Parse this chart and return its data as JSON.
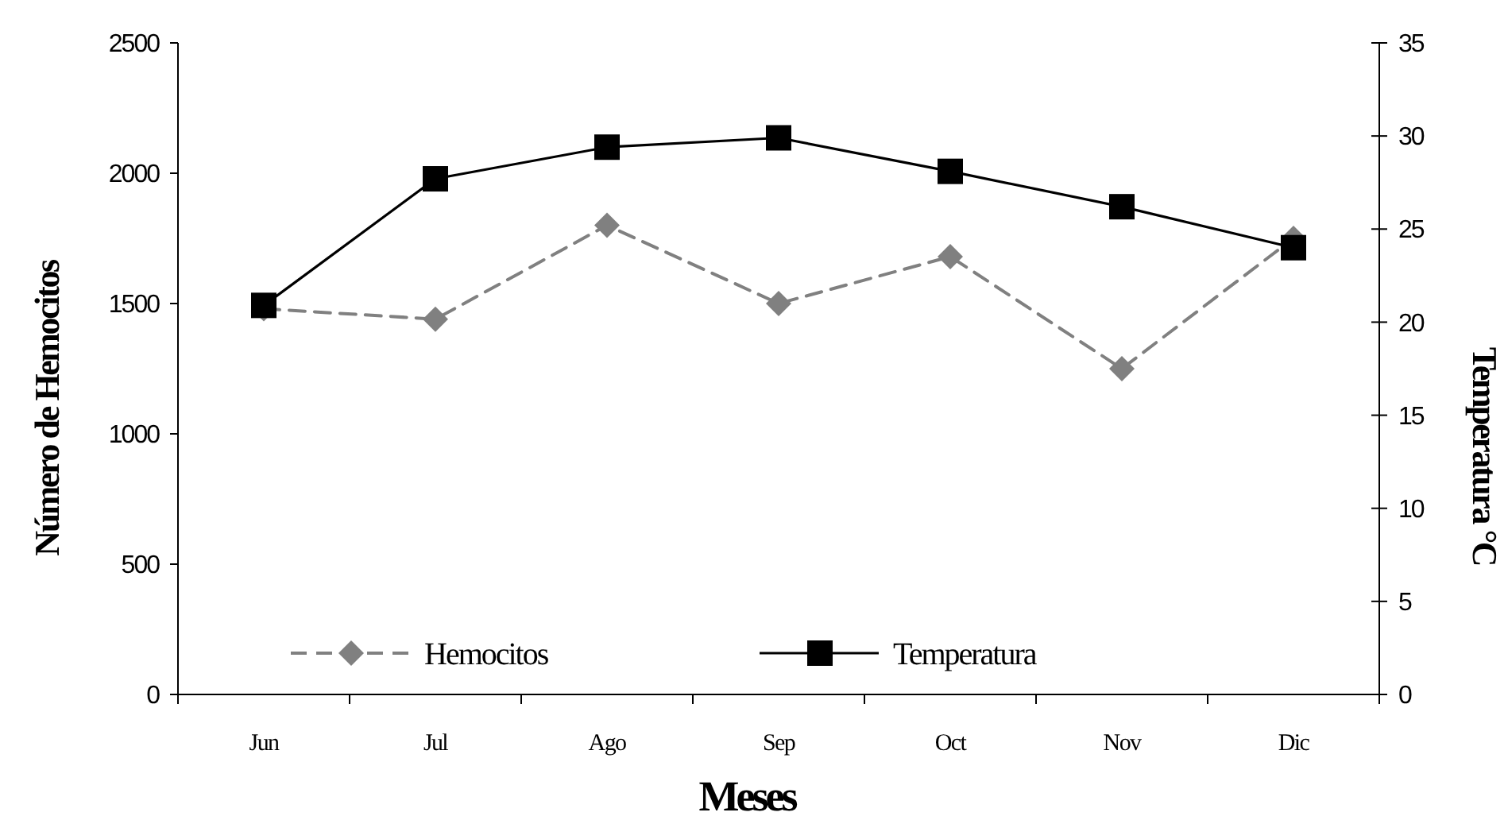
{
  "chart_data": {
    "type": "line",
    "xlabel": "Meses",
    "ylabel": "Número de Hemocitos",
    "y2label": "Temperatura °C",
    "categories": [
      "Jun",
      "Jul",
      "Ago",
      "Sep",
      "Oct",
      "Nov",
      "Dic"
    ],
    "series": [
      {
        "name": "Hemocitos",
        "color": "#808080",
        "marker": "diamond",
        "line_style": "dashed",
        "values": [
          1480,
          1440,
          1800,
          1500,
          1680,
          1250,
          1750
        ]
      },
      {
        "name": "Temperatura",
        "color": "#000000",
        "marker": "square",
        "line_style": "solid",
        "axis": "y2",
        "values": [
          20.9,
          27.7,
          29.4,
          29.9,
          28.1,
          26.2,
          24.0
        ]
      }
    ],
    "ylim": [
      0,
      2500
    ],
    "yticks": [
      0,
      500,
      1000,
      1500,
      2000,
      2500
    ],
    "y2lim": [
      0,
      35
    ],
    "y2ticks": [
      0,
      5,
      10,
      15,
      20,
      25,
      30,
      35
    ],
    "grid": false,
    "legend": "bottom"
  }
}
